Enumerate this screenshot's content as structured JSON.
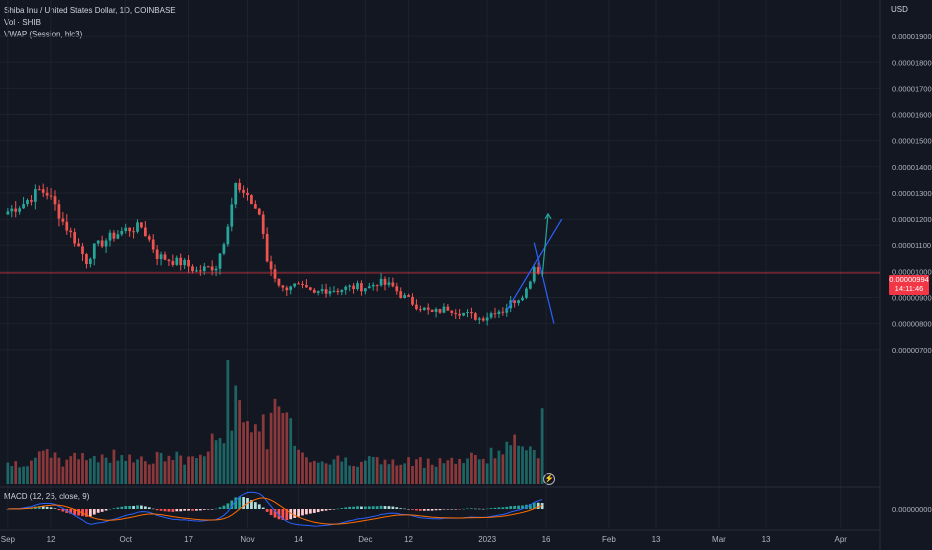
{
  "header": {
    "symbol_line": "Shiba Inu / United States Dollar, 1D, COINBASE",
    "volume_line": "Vol · SHIB",
    "vwap_line": "VWAP (Session, hlc3)"
  },
  "price_axis": {
    "currency": "USD"
  },
  "current_price": {
    "value": "0.00000994",
    "countdown": "14:11:46"
  },
  "macd_label": "MACD (12, 26, close, 9)",
  "macd_axis_value": "0.00000000",
  "icons": {
    "event": "lightning-icon"
  },
  "colors": {
    "background": "#131722",
    "up": "#26a69a",
    "down": "#ef5350",
    "price_line": "#f23645",
    "drawing": "#2962ff",
    "macd_line": "#2962ff",
    "signal_line": "#ff6d00"
  },
  "chart_data": [
    {
      "type": "candlestick",
      "title": "Shiba Inu / United States Dollar, 1D, COINBASE",
      "ylim": [
        6.8e-06,
        2e-05
      ],
      "y_ticks": [
        "0.00000700",
        "0.00000800",
        "0.00000900",
        "0.00001000",
        "0.00001100",
        "0.00001200",
        "0.00001300",
        "0.00001400",
        "0.00001500",
        "0.00001600",
        "0.00001700",
        "0.00001800",
        "0.00001900"
      ],
      "x_ticks": [
        "Sep",
        "12",
        "Oct",
        "17",
        "Nov",
        "14",
        "Dec",
        "12",
        "2023",
        "16",
        "Feb",
        "13",
        "Mar",
        "13",
        "Apr"
      ],
      "x_range_days": [
        -2,
        222
      ],
      "x_tick_days": [
        0,
        11,
        30,
        46,
        61,
        74,
        91,
        102,
        122,
        137,
        153,
        165,
        181,
        193,
        212
      ],
      "close_series_anchors_day": [
        0,
        4,
        8,
        10,
        12,
        14,
        17,
        20,
        22,
        26,
        30,
        34,
        36,
        38,
        42,
        45,
        48,
        50,
        53,
        55,
        58,
        60,
        61,
        62,
        64,
        66,
        68,
        70,
        72,
        74,
        78,
        80,
        84,
        88,
        92,
        94,
        98,
        100,
        104,
        108,
        110,
        112,
        114,
        116,
        118,
        120,
        122,
        124,
        126,
        128,
        130,
        132,
        134,
        136
      ],
      "close_series_anchors_value": [
        1.23e-05,
        1.26e-05,
        1.31e-05,
        1.3e-05,
        1.25e-05,
        1.19e-05,
        1.12e-05,
        1.04e-05,
        1.09e-05,
        1.13e-05,
        1.16e-05,
        1.17e-05,
        1.12e-05,
        1.06e-05,
        1.04e-05,
        1.03e-05,
        1e-05,
        1.01e-05,
        1.02e-05,
        1.12e-05,
        1.33e-05,
        1.28e-05,
        1.3e-05,
        1.26e-05,
        1.22e-05,
        1.04e-05,
        9.8e-06,
        9.3e-06,
        9.5e-06,
        9.4e-06,
        9.1e-06,
        9.3e-06,
        9.3e-06,
        9.4e-06,
        9.4e-06,
        9.6e-06,
        9.4e-06,
        9.1e-06,
        8.7e-06,
        8.4e-06,
        8.5e-06,
        8.6e-06,
        8.5e-06,
        8.4e-06,
        8.3e-06,
        8.2e-06,
        8.3e-06,
        8.5e-06,
        8.5e-06,
        8.8e-06,
        9e-06,
        9.3e-06,
        1.02e-05,
        9.9e-06
      ],
      "last_price": 9.94e-06,
      "drawing": {
        "rising_line": {
          "from": [
            127,
            8.5e-06
          ],
          "to": [
            141,
            1.2e-05
          ]
        },
        "falling_line": {
          "from": [
            134,
            1.11e-05
          ],
          "to": [
            139,
            8e-06
          ]
        },
        "arrow": {
          "from": [
            136,
            9.8e-06
          ],
          "to": [
            137.5,
            1.22e-05
          ]
        }
      }
    },
    {
      "type": "bar",
      "title": "Vol · SHIB",
      "volume_scale": "relative",
      "heights_anchor_day": [
        0,
        5,
        10,
        15,
        20,
        25,
        30,
        35,
        40,
        45,
        50,
        55,
        56,
        57,
        58,
        60,
        62,
        64,
        66,
        68,
        70,
        75,
        80,
        90,
        100,
        110,
        115,
        120,
        125,
        130,
        134,
        135,
        136
      ],
      "heights_anchor_value": [
        0.15,
        0.2,
        0.22,
        0.18,
        0.24,
        0.2,
        0.26,
        0.18,
        0.22,
        0.2,
        0.24,
        0.45,
        0.8,
        0.42,
        1.0,
        0.6,
        0.42,
        0.48,
        0.4,
        0.55,
        0.62,
        0.25,
        0.18,
        0.2,
        0.16,
        0.2,
        0.18,
        0.22,
        0.26,
        0.32,
        0.36,
        0.28,
        0.58
      ]
    },
    {
      "type": "line",
      "title": "MACD (12, 26, close, 9)",
      "series": [
        {
          "name": "MACD",
          "role": "macd"
        },
        {
          "name": "Signal",
          "role": "signal"
        },
        {
          "name": "Histogram",
          "role": "histogram"
        }
      ]
    }
  ]
}
